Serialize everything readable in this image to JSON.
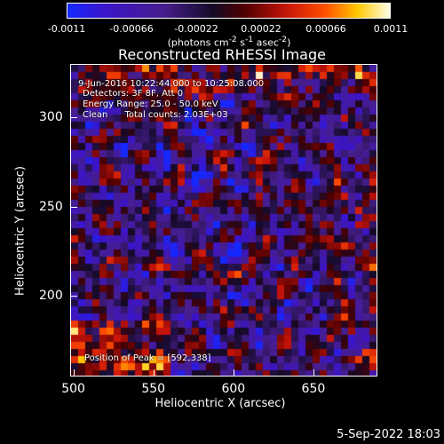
{
  "colorbar": {
    "ticks": [
      "-0.0011",
      "-0.00066",
      "-0.00022",
      "0.00022",
      "0.00066",
      "0.0011"
    ],
    "units_html": "(photons cm<sup>-2</sup> s<sup>-1</sup> asec<sup>-2</sup>)",
    "min": -0.0011,
    "max": 0.0011
  },
  "chart_data": {
    "type": "heatmap",
    "title": "Reconstructed RHESSI Image",
    "xlabel": "Heliocentric X (arcsec)",
    "ylabel": "Heliocentric Y (arcsec)",
    "xlim": [
      498,
      690
    ],
    "ylim": [
      155,
      330
    ],
    "x_ticks": [
      "500",
      "550",
      "600",
      "650"
    ],
    "y_ticks": [
      "300",
      "250",
      "200"
    ],
    "annotations": {
      "time": "9-Jun-2016 10:22:44.000 to 10:25:08.000",
      "detectors": "Detectors: 3F 8F, Att 0",
      "energy": "Energy Range: 25.0 - 50.0 keV",
      "clean": "Clean      Total counts: 2.03E+03",
      "peak": "Position of Peak = [592,338]"
    },
    "peak_position": [
      592,
      338
    ]
  },
  "timestamp": "5-Sep-2022 18:03"
}
